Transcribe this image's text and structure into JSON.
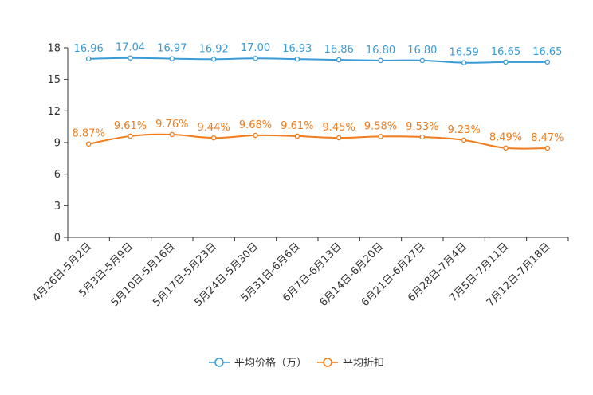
{
  "chart_data": {
    "type": "line",
    "categories": [
      "4月26日-5月2日",
      "5月3日-5月9日",
      "5月10日-5月16日",
      "5月17日-5月23日",
      "5月24日-5月30日",
      "5月31日-6月6日",
      "6月7日-6月13日",
      "6月14日-6月20日",
      "6月21日-6月27日",
      "6月28日-7月4日",
      "7月5日-7月11日",
      "7月12日-7月18日"
    ],
    "series": [
      {
        "name": "平均价格（万）",
        "color": "#3a9bd5",
        "values": [
          16.96,
          17.04,
          16.97,
          16.92,
          17.0,
          16.93,
          16.86,
          16.8,
          16.8,
          16.59,
          16.65,
          16.65
        ],
        "labels": [
          "16.96",
          "17.04",
          "16.97",
          "16.92",
          "17.00",
          "16.93",
          "16.86",
          "16.80",
          "16.80",
          "16.59",
          "16.65",
          "16.65"
        ]
      },
      {
        "name": "平均折扣",
        "color": "#f07c1b",
        "values": [
          8.87,
          9.61,
          9.76,
          9.44,
          9.68,
          9.61,
          9.45,
          9.58,
          9.53,
          9.23,
          8.49,
          8.47
        ],
        "labels": [
          "8.87%",
          "9.61%",
          "9.76%",
          "9.44%",
          "9.68%",
          "9.61%",
          "9.45%",
          "9.58%",
          "9.53%",
          "9.23%",
          "8.49%",
          "8.47%"
        ]
      }
    ],
    "yticks": [
      "0",
      "3",
      "6",
      "9",
      "12",
      "15",
      "18"
    ],
    "ylim": [
      0,
      18
    ],
    "title": "",
    "xlabel": "",
    "ylabel": "",
    "legend_position": "bottom-center"
  }
}
